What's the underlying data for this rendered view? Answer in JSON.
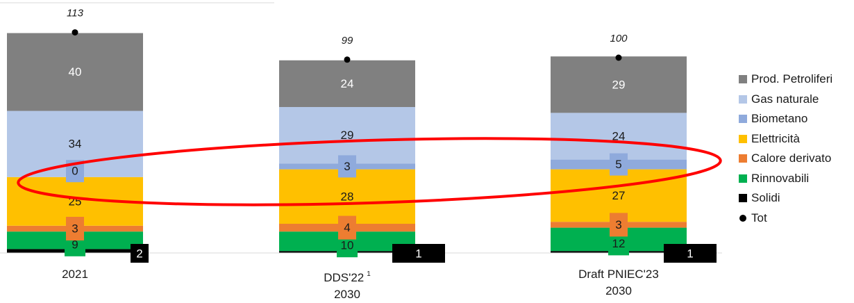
{
  "chart_data": {
    "type": "bar",
    "stacked": true,
    "categories": [
      {
        "line1": "2021",
        "line2": "",
        "sup": ""
      },
      {
        "line1": "DDS'22",
        "line2": "2030",
        "sup": "1"
      },
      {
        "line1": "Draft PNIEC'23",
        "line2": "2030",
        "sup": ""
      }
    ],
    "series": [
      {
        "name": "Solidi",
        "color": "#000000",
        "values": [
          2,
          1,
          1
        ]
      },
      {
        "name": "Rinnovabili",
        "color": "#00b050",
        "values": [
          9,
          10,
          12
        ]
      },
      {
        "name": "Calore derivato",
        "color": "#ed7d31",
        "values": [
          3,
          4,
          3
        ]
      },
      {
        "name": "Elettricità",
        "color": "#ffc000",
        "values": [
          25,
          28,
          27
        ]
      },
      {
        "name": "Biometano",
        "color": "#8faadc",
        "values": [
          0,
          3,
          5
        ]
      },
      {
        "name": "Gas naturale",
        "color": "#b4c7e7",
        "values": [
          34,
          29,
          24
        ]
      },
      {
        "name": "Prod. Petroliferi",
        "color": "#808080",
        "values": [
          40,
          24,
          29
        ]
      }
    ],
    "totals": {
      "name": "Tot",
      "values": [
        113,
        99,
        100
      ]
    },
    "legend_order": [
      "Prod. Petroliferi",
      "Gas naturale",
      "Biometano",
      "Elettricità",
      "Calore derivato",
      "Rinnovabili",
      "Solidi",
      "Tot"
    ],
    "legend_position": "right",
    "grid": false,
    "annotation": "red ellipse highlighting Biometano values",
    "colors": {
      "annotation": "#ff0000",
      "total_marker": "#000000",
      "axis": "#d9d9d9"
    }
  }
}
